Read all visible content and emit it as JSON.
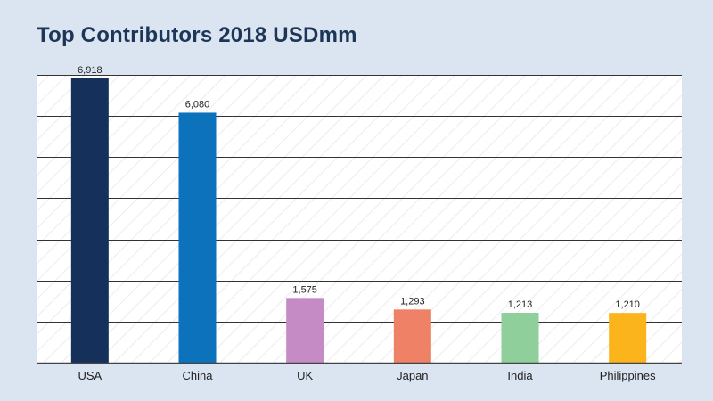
{
  "chart_data": {
    "type": "bar",
    "title": "Top Contributors 2018 USDmm",
    "categories": [
      "USA",
      "China",
      "UK",
      "Japan",
      "India",
      "Philippines"
    ],
    "values": [
      6918,
      6080,
      1575,
      1293,
      1213,
      1210
    ],
    "value_labels": [
      "6,918",
      "6,080",
      "1,575",
      "1,293",
      "1,213",
      "1,210"
    ],
    "colors": [
      "#15305a",
      "#0c72bc",
      "#c48bc4",
      "#ef8266",
      "#8ecf9c",
      "#fbb41b"
    ],
    "ylim": [
      0,
      7000
    ],
    "grid": true,
    "background_pattern": "diagonal-hatch"
  }
}
